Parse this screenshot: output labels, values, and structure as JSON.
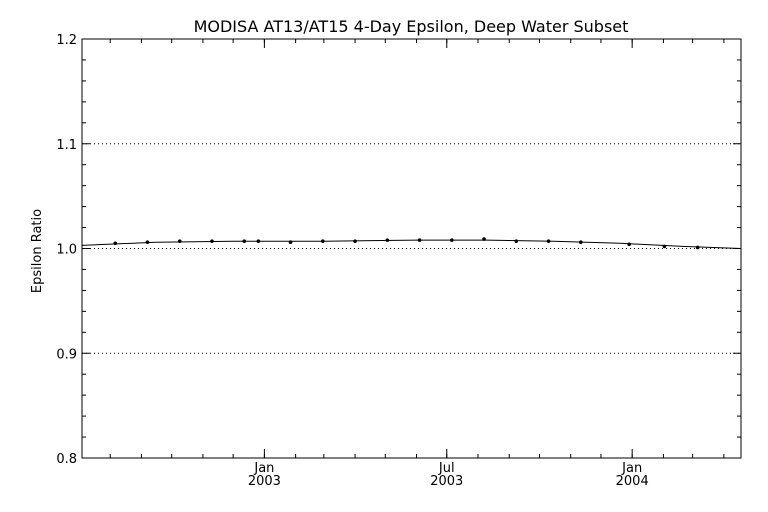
{
  "chart_data": {
    "type": "line",
    "title": "MODISA AT13/AT15 4-Day Epsilon, Deep Water Subset",
    "xlabel": "",
    "ylabel": "Epsilon Ratio",
    "x_range": [
      "2002-07-04",
      "2004-04-18"
    ],
    "ylim": [
      0.8,
      1.2
    ],
    "yticks": [
      {
        "value": 0.8,
        "label": "0.8"
      },
      {
        "value": 0.9,
        "label": "0.9"
      },
      {
        "value": 1.0,
        "label": "1.0"
      },
      {
        "value": 1.1,
        "label": "1.1"
      },
      {
        "value": 1.2,
        "label": "1.2"
      }
    ],
    "xticks": [
      {
        "date": "2003-01-01",
        "month": "Jan",
        "year": "2003"
      },
      {
        "date": "2003-07-01",
        "month": "Jul",
        "year": "2003"
      },
      {
        "date": "2004-01-01",
        "month": "Jan",
        "year": "2004"
      }
    ],
    "grid_y": [
      0.9,
      1.0,
      1.1
    ],
    "series": [
      {
        "points": [
          {
            "x": "2002-08-06",
            "y": 1.005
          },
          {
            "x": "2002-09-07",
            "y": 1.006
          },
          {
            "x": "2002-10-09",
            "y": 1.007
          },
          {
            "x": "2002-11-10",
            "y": 1.007
          },
          {
            "x": "2002-12-12",
            "y": 1.007
          },
          {
            "x": "2002-12-26",
            "y": 1.007
          },
          {
            "x": "2003-01-27",
            "y": 1.006
          },
          {
            "x": "2003-02-28",
            "y": 1.007
          },
          {
            "x": "2003-04-01",
            "y": 1.007
          },
          {
            "x": "2003-05-03",
            "y": 1.008
          },
          {
            "x": "2003-06-04",
            "y": 1.008
          },
          {
            "x": "2003-07-06",
            "y": 1.008
          },
          {
            "x": "2003-08-07",
            "y": 1.009
          },
          {
            "x": "2003-09-08",
            "y": 1.007
          },
          {
            "x": "2003-10-10",
            "y": 1.007
          },
          {
            "x": "2003-11-11",
            "y": 1.006
          },
          {
            "x": "2003-12-29",
            "y": 1.004
          },
          {
            "x": "2004-02-02",
            "y": 1.002
          },
          {
            "x": "2004-03-06",
            "y": 1.001
          }
        ],
        "fit_line": [
          {
            "x": "2002-07-04",
            "y": 1.003
          },
          {
            "x": "2002-09-15",
            "y": 1.006
          },
          {
            "x": "2002-12-01",
            "y": 1.007
          },
          {
            "x": "2003-03-01",
            "y": 1.007
          },
          {
            "x": "2003-06-01",
            "y": 1.008
          },
          {
            "x": "2003-08-10",
            "y": 1.008
          },
          {
            "x": "2003-10-15",
            "y": 1.007
          },
          {
            "x": "2003-12-20",
            "y": 1.005
          },
          {
            "x": "2004-02-20",
            "y": 1.002
          },
          {
            "x": "2004-04-18",
            "y": 1.0
          }
        ]
      }
    ]
  }
}
